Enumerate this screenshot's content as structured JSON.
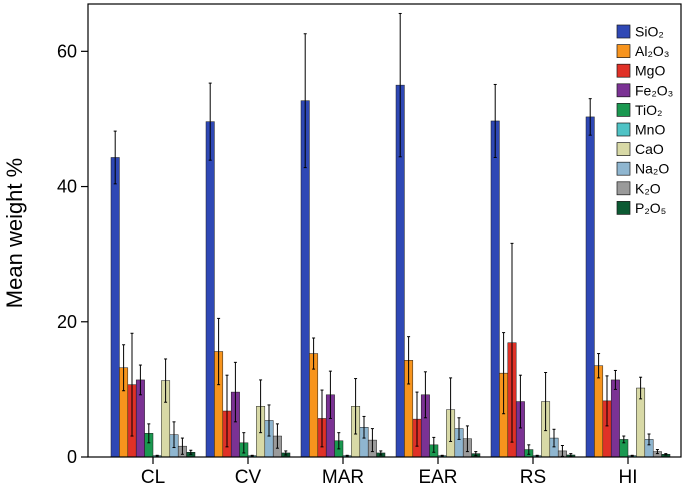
{
  "chart_data": {
    "type": "bar",
    "ylabel": "Mean weight %",
    "xlabel": "",
    "ylim": [
      0,
      67
    ],
    "yticks": [
      0,
      20,
      40,
      60
    ],
    "grid": false,
    "legend_position": "top-right",
    "categories": [
      "CL",
      "CV",
      "MAR",
      "EAR",
      "RS",
      "HI"
    ],
    "series": [
      {
        "name": "SiO₂",
        "color": "#2f48b5",
        "values": [
          44.3,
          49.6,
          52.7,
          55.0,
          49.7,
          50.3
        ],
        "errors": [
          3.9,
          5.7,
          9.9,
          10.6,
          5.4,
          2.7
        ]
      },
      {
        "name": "Al₂O₃",
        "color": "#f7941d",
        "values": [
          13.2,
          15.6,
          15.3,
          14.3,
          12.4,
          13.5
        ],
        "errors": [
          3.4,
          4.9,
          2.3,
          3.5,
          6.0,
          1.8
        ]
      },
      {
        "name": "MgO",
        "color": "#e03127",
        "values": [
          10.7,
          6.8,
          5.7,
          5.6,
          16.9,
          8.3
        ],
        "errors": [
          7.6,
          5.3,
          4.2,
          4.0,
          14.7,
          3.7
        ]
      },
      {
        "name": "Fe₂O₃",
        "color": "#7b3294",
        "values": [
          11.4,
          9.6,
          9.2,
          9.2,
          8.2,
          11.4
        ],
        "errors": [
          2.2,
          4.4,
          3.5,
          3.4,
          3.9,
          1.4
        ]
      },
      {
        "name": "TiO₂",
        "color": "#1a9850",
        "values": [
          3.5,
          2.1,
          2.4,
          1.8,
          1.1,
          2.6
        ],
        "errors": [
          1.4,
          1.5,
          1.2,
          1.1,
          0.7,
          0.5
        ]
      },
      {
        "name": "MnO",
        "color": "#4fc3c5",
        "values": [
          0.2,
          0.2,
          0.2,
          0.2,
          0.2,
          0.2
        ],
        "errors": [
          0.05,
          0.05,
          0.05,
          0.05,
          0.05,
          0.05
        ]
      },
      {
        "name": "CaO",
        "color": "#d8d9a6",
        "values": [
          11.3,
          7.5,
          7.5,
          7.0,
          8.2,
          10.2
        ],
        "errors": [
          3.2,
          3.9,
          4.1,
          4.7,
          4.3,
          1.6
        ]
      },
      {
        "name": "Na₂O",
        "color": "#8fb6d0",
        "values": [
          3.3,
          5.4,
          4.4,
          4.2,
          2.8,
          2.6
        ],
        "errors": [
          1.9,
          2.3,
          1.6,
          1.6,
          1.3,
          0.8
        ]
      },
      {
        "name": "K₂O",
        "color": "#9a9a9a",
        "values": [
          1.6,
          3.1,
          2.5,
          2.7,
          0.9,
          0.8
        ],
        "errors": [
          1.2,
          1.8,
          1.7,
          1.9,
          0.8,
          0.3
        ]
      },
      {
        "name": "P₂O₅",
        "color": "#0c5a33",
        "values": [
          0.7,
          0.6,
          0.6,
          0.5,
          0.3,
          0.4
        ],
        "errors": [
          0.3,
          0.3,
          0.3,
          0.3,
          0.2,
          0.1
        ]
      }
    ]
  }
}
